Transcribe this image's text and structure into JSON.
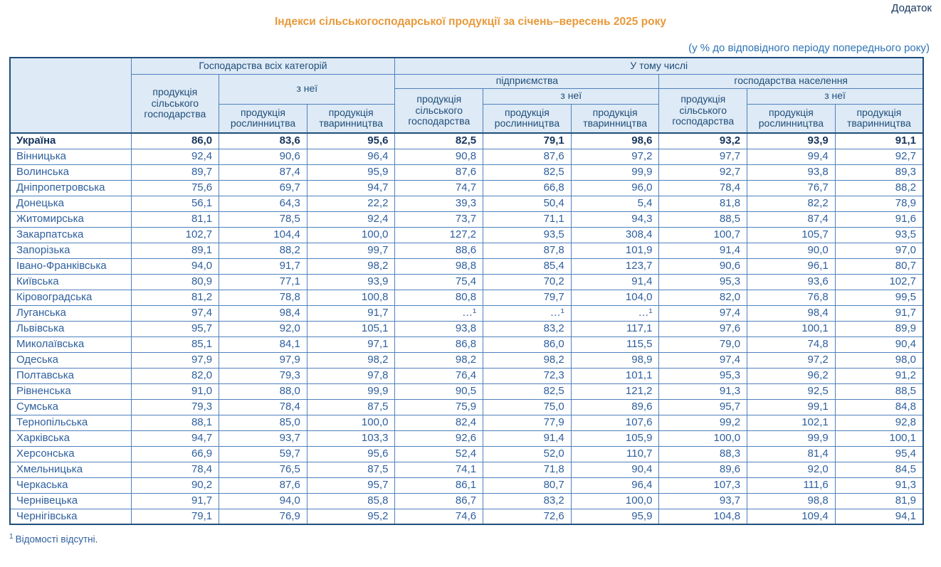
{
  "page": {
    "corner_label": "Додаток",
    "title": "Індекси сільськогосподарської продукції за січень–вересень 2025 року",
    "subtitle": "(у % до відповідного періоду попереднього року)",
    "footnote_marker": "1",
    "footnote_text": "Відомості відсутні."
  },
  "colors": {
    "title_orange": "#E8993B",
    "header_bg": "#DEEAF6",
    "header_text": "#1F4E79",
    "body_text": "#2E5F9E",
    "bold_row_text": "#17365D",
    "inner_border": "#4F81BD",
    "outer_border": "#1F4E79"
  },
  "table": {
    "header": {
      "all_categories": "Господарства всіх категорій",
      "including": "У тому числі",
      "enterprises": "підприємства",
      "households": "господарства населення",
      "agri_production": "продукція сільського господарства",
      "of_which": "з неї",
      "crop_production": "продукція рослинництва",
      "livestock_production": "продукція тваринництва"
    },
    "rows": [
      {
        "region": "Україна",
        "bold": true,
        "values": [
          "86,0",
          "83,6",
          "95,6",
          "82,5",
          "79,1",
          "98,6",
          "93,2",
          "93,9",
          "91,1"
        ]
      },
      {
        "region": "Вінницька",
        "bold": false,
        "values": [
          "92,4",
          "90,6",
          "96,4",
          "90,8",
          "87,6",
          "97,2",
          "97,7",
          "99,4",
          "92,7"
        ]
      },
      {
        "region": "Волинська",
        "bold": false,
        "values": [
          "89,7",
          "87,4",
          "95,9",
          "87,6",
          "82,5",
          "99,9",
          "92,7",
          "93,8",
          "89,3"
        ]
      },
      {
        "region": "Дніпропетровська",
        "bold": false,
        "values": [
          "75,6",
          "69,7",
          "94,7",
          "74,7",
          "66,8",
          "96,0",
          "78,4",
          "76,7",
          "88,2"
        ]
      },
      {
        "region": "Донецька",
        "bold": false,
        "values": [
          "56,1",
          "64,3",
          "22,2",
          "39,3",
          "50,4",
          "5,4",
          "81,8",
          "82,2",
          "78,9"
        ]
      },
      {
        "region": "Житомирська",
        "bold": false,
        "values": [
          "81,1",
          "78,5",
          "92,4",
          "73,7",
          "71,1",
          "94,3",
          "88,5",
          "87,4",
          "91,6"
        ]
      },
      {
        "region": "Закарпатська",
        "bold": false,
        "values": [
          "102,7",
          "104,4",
          "100,0",
          "127,2",
          "93,5",
          "308,4",
          "100,7",
          "105,7",
          "93,5"
        ]
      },
      {
        "region": "Запорізька",
        "bold": false,
        "values": [
          "89,1",
          "88,2",
          "99,7",
          "88,6",
          "87,8",
          "101,9",
          "91,4",
          "90,0",
          "97,0"
        ]
      },
      {
        "region": "Івано-Франківська",
        "bold": false,
        "values": [
          "94,0",
          "91,7",
          "98,2",
          "98,8",
          "85,4",
          "123,7",
          "90,6",
          "96,1",
          "80,7"
        ]
      },
      {
        "region": "Київська",
        "bold": false,
        "values": [
          "80,9",
          "77,1",
          "93,9",
          "75,4",
          "70,2",
          "91,4",
          "95,3",
          "93,6",
          "102,7"
        ]
      },
      {
        "region": "Кіровоградська",
        "bold": false,
        "values": [
          "81,2",
          "78,8",
          "100,8",
          "80,8",
          "79,7",
          "104,0",
          "82,0",
          "76,8",
          "99,5"
        ]
      },
      {
        "region": "Луганська",
        "bold": false,
        "values": [
          "97,4",
          "98,4",
          "91,7",
          "…¹",
          "…¹",
          "…¹",
          "97,4",
          "98,4",
          "91,7"
        ]
      },
      {
        "region": "Львівська",
        "bold": false,
        "values": [
          "95,7",
          "92,0",
          "105,1",
          "93,8",
          "83,2",
          "117,1",
          "97,6",
          "100,1",
          "89,9"
        ]
      },
      {
        "region": "Миколаївська",
        "bold": false,
        "values": [
          "85,1",
          "84,1",
          "97,1",
          "86,8",
          "86,0",
          "115,5",
          "79,0",
          "74,8",
          "90,4"
        ]
      },
      {
        "region": "Одеська",
        "bold": false,
        "values": [
          "97,9",
          "97,9",
          "98,2",
          "98,2",
          "98,2",
          "98,9",
          "97,4",
          "97,2",
          "98,0"
        ]
      },
      {
        "region": "Полтавська",
        "bold": false,
        "values": [
          "82,0",
          "79,3",
          "97,8",
          "76,4",
          "72,3",
          "101,1",
          "95,3",
          "96,2",
          "91,2"
        ]
      },
      {
        "region": "Рівненська",
        "bold": false,
        "values": [
          "91,0",
          "88,0",
          "99,9",
          "90,5",
          "82,5",
          "121,2",
          "91,3",
          "92,5",
          "88,5"
        ]
      },
      {
        "region": "Сумська",
        "bold": false,
        "values": [
          "79,3",
          "78,4",
          "87,5",
          "75,9",
          "75,0",
          "89,6",
          "95,7",
          "99,1",
          "84,8"
        ]
      },
      {
        "region": "Тернопільська",
        "bold": false,
        "values": [
          "88,1",
          "85,0",
          "100,0",
          "82,4",
          "77,9",
          "107,6",
          "99,2",
          "102,1",
          "92,8"
        ]
      },
      {
        "region": "Харківська",
        "bold": false,
        "values": [
          "94,7",
          "93,7",
          "103,3",
          "92,6",
          "91,4",
          "105,9",
          "100,0",
          "99,9",
          "100,1"
        ]
      },
      {
        "region": "Херсонська",
        "bold": false,
        "values": [
          "66,9",
          "59,7",
          "95,6",
          "52,4",
          "52,0",
          "110,7",
          "88,3",
          "81,4",
          "95,4"
        ]
      },
      {
        "region": "Хмельницька",
        "bold": false,
        "values": [
          "78,4",
          "76,5",
          "87,5",
          "74,1",
          "71,8",
          "90,4",
          "89,6",
          "92,0",
          "84,5"
        ]
      },
      {
        "region": "Черкаська",
        "bold": false,
        "values": [
          "90,2",
          "87,6",
          "95,7",
          "86,1",
          "80,7",
          "96,4",
          "107,3",
          "111,6",
          "91,3"
        ]
      },
      {
        "region": "Чернівецька",
        "bold": false,
        "values": [
          "91,7",
          "94,0",
          "85,8",
          "86,7",
          "83,2",
          "100,0",
          "93,7",
          "98,8",
          "81,9"
        ]
      },
      {
        "region": "Чернігівська",
        "bold": false,
        "values": [
          "79,1",
          "76,9",
          "95,2",
          "74,6",
          "72,6",
          "95,9",
          "104,8",
          "109,4",
          "94,1"
        ]
      }
    ]
  }
}
